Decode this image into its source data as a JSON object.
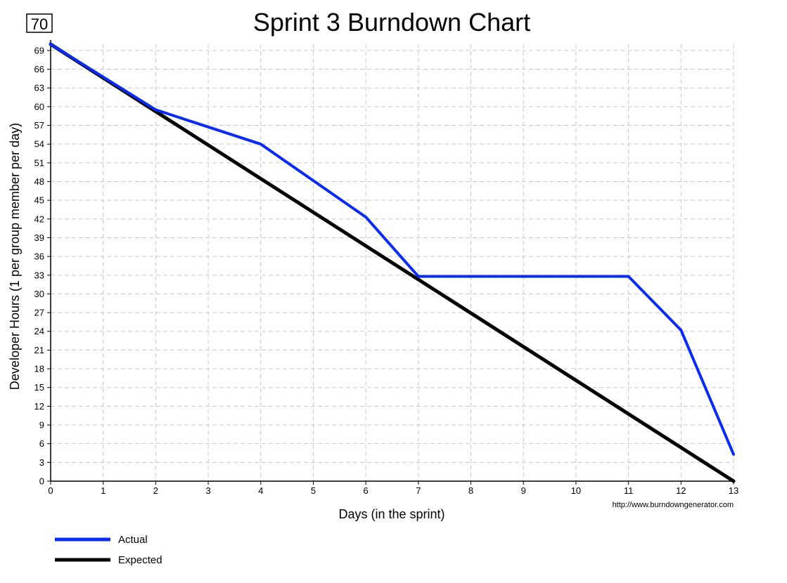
{
  "chart_data": {
    "type": "line",
    "title": "Sprint 3 Burndown Chart",
    "badge": "70",
    "xlabel": "Days (in the sprint)",
    "ylabel": "Developer Hours (1 per group member per day)",
    "credit": "http://www.burndowngenerator.com",
    "xlim": [
      0,
      13
    ],
    "ylim": [
      0,
      70
    ],
    "x_ticks": [
      0,
      1,
      2,
      3,
      4,
      5,
      6,
      7,
      8,
      9,
      10,
      11,
      12,
      13
    ],
    "y_ticks": [
      0,
      3,
      6,
      9,
      12,
      15,
      18,
      21,
      24,
      27,
      30,
      33,
      36,
      39,
      42,
      45,
      48,
      51,
      54,
      57,
      60,
      63,
      66,
      69
    ],
    "grid": true,
    "legend_position": "bottom-left",
    "series": [
      {
        "name": "Actual",
        "color": "#0a2cf0",
        "points": [
          [
            0,
            70
          ],
          [
            2,
            59.5
          ],
          [
            4,
            54
          ],
          [
            6,
            42.3
          ],
          [
            7,
            32.8
          ],
          [
            11,
            32.8
          ],
          [
            12,
            24.2
          ],
          [
            13,
            4.3
          ]
        ]
      },
      {
        "name": "Expected",
        "color": "#000000",
        "points": [
          [
            0,
            70
          ],
          [
            13,
            0
          ]
        ]
      }
    ]
  }
}
